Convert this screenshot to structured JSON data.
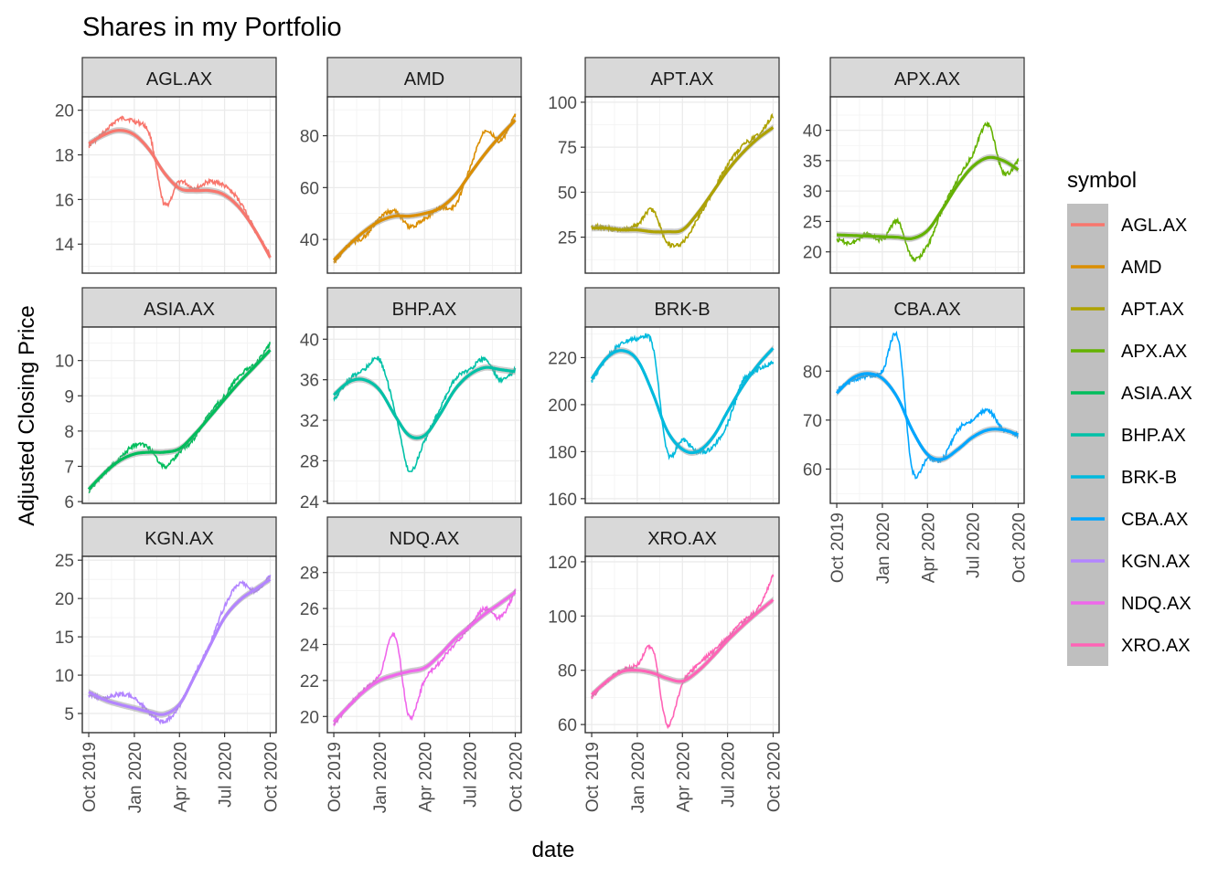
{
  "chart_data": {
    "type": "line",
    "title": "Shares in my Portfolio",
    "xlabel": "date",
    "ylabel": "Adjusted Closing Price",
    "x_ticks": [
      "Oct 2019",
      "Jan 2020",
      "Apr 2020",
      "Jul 2020",
      "Oct 2020"
    ],
    "x_tick_dates": [
      "2019-10-01",
      "2020-01-01",
      "2020-04-01",
      "2020-07-01",
      "2020-10-01"
    ],
    "x_range": [
      "2019-09-18",
      "2020-10-13"
    ],
    "grid": true,
    "smoother": "loess with grey confidence band",
    "legend": {
      "title": "symbol",
      "position": "right",
      "entries": [
        "AGL.AX",
        "AMD",
        "APT.AX",
        "APX.AX",
        "ASIA.AX",
        "BHP.AX",
        "BRK-B",
        "CBA.AX",
        "KGN.AX",
        "NDQ.AX",
        "XRO.AX"
      ]
    },
    "series": [
      {
        "name": "AGL.AX",
        "color": "#F8766D",
        "y_ticks": [
          14,
          16,
          18,
          20
        ],
        "ylim": [
          12.7,
          20.6
        ],
        "x": [
          "2019-10-01",
          "2019-11-01",
          "2019-12-01",
          "2020-01-01",
          "2020-02-01",
          "2020-03-01",
          "2020-04-01",
          "2020-05-01",
          "2020-06-01",
          "2020-07-01",
          "2020-08-01",
          "2020-09-01",
          "2020-10-01"
        ],
        "values": [
          18.4,
          19.0,
          19.6,
          19.5,
          18.9,
          15.8,
          16.8,
          16.5,
          16.8,
          16.6,
          15.9,
          14.6,
          13.5
        ],
        "smooth": [
          18.5,
          18.9,
          19.1,
          18.9,
          18.2,
          17.2,
          16.5,
          16.4,
          16.4,
          16.2,
          15.6,
          14.6,
          13.4
        ]
      },
      {
        "name": "AMD",
        "color": "#DB8E00",
        "y_ticks": [
          40,
          60,
          80
        ],
        "ylim": [
          27,
          95
        ],
        "x": [
          "2019-10-01",
          "2019-11-01",
          "2019-12-01",
          "2020-01-01",
          "2020-02-01",
          "2020-03-01",
          "2020-04-01",
          "2020-05-01",
          "2020-06-01",
          "2020-07-01",
          "2020-08-01",
          "2020-09-01",
          "2020-10-01"
        ],
        "values": [
          31,
          38,
          41,
          48,
          51,
          45,
          48,
          52,
          53,
          67,
          82,
          78,
          88
        ],
        "smooth": [
          32,
          38,
          43,
          47,
          49,
          49,
          50,
          52,
          57,
          65,
          73,
          80,
          86
        ]
      },
      {
        "name": "APT.AX",
        "color": "#AEA200",
        "y_ticks": [
          25,
          50,
          75,
          100
        ],
        "ylim": [
          5,
          103
        ],
        "x": [
          "2019-10-01",
          "2019-11-01",
          "2019-12-01",
          "2020-01-01",
          "2020-02-01",
          "2020-03-01",
          "2020-04-01",
          "2020-05-01",
          "2020-06-01",
          "2020-07-01",
          "2020-08-01",
          "2020-09-01",
          "2020-10-01"
        ],
        "values": [
          31,
          30,
          29,
          32,
          40,
          22,
          22,
          35,
          50,
          65,
          76,
          82,
          93
        ],
        "smooth": [
          30,
          30,
          29,
          29,
          28,
          28,
          29,
          38,
          50,
          62,
          72,
          80,
          86
        ]
      },
      {
        "name": "APX.AX",
        "color": "#64B200",
        "y_ticks": [
          20,
          25,
          30,
          35,
          40
        ],
        "ylim": [
          16.5,
          45.5
        ],
        "x": [
          "2019-10-01",
          "2019-11-01",
          "2019-12-01",
          "2020-01-01",
          "2020-02-01",
          "2020-03-01",
          "2020-04-01",
          "2020-05-01",
          "2020-06-01",
          "2020-07-01",
          "2020-08-01",
          "2020-09-01",
          "2020-10-01"
        ],
        "values": [
          22,
          21.5,
          23,
          22,
          25,
          19,
          21,
          27,
          32,
          36,
          41,
          33,
          35
        ],
        "smooth": [
          22.8,
          22.7,
          22.6,
          22.5,
          22.4,
          22.2,
          23.5,
          27,
          31,
          34,
          35.5,
          35,
          33.5
        ]
      },
      {
        "name": "ASIA.AX",
        "color": "#00BD5C",
        "y_ticks": [
          6,
          7,
          8,
          9,
          10
        ],
        "ylim": [
          5.95,
          10.95
        ],
        "x": [
          "2019-10-01",
          "2019-11-01",
          "2019-12-01",
          "2020-01-01",
          "2020-02-01",
          "2020-03-01",
          "2020-04-01",
          "2020-05-01",
          "2020-06-01",
          "2020-07-01",
          "2020-08-01",
          "2020-09-01",
          "2020-10-01"
        ],
        "values": [
          6.3,
          6.8,
          7.2,
          7.6,
          7.5,
          7.0,
          7.4,
          7.8,
          8.5,
          9.0,
          9.6,
          9.9,
          10.5
        ],
        "smooth": [
          6.35,
          6.8,
          7.15,
          7.35,
          7.4,
          7.4,
          7.5,
          7.9,
          8.4,
          8.9,
          9.4,
          9.85,
          10.3
        ]
      },
      {
        "name": "BHP.AX",
        "color": "#00C1A7",
        "y_ticks": [
          24,
          28,
          32,
          36,
          40
        ],
        "ylim": [
          23.8,
          41.2
        ],
        "x": [
          "2019-10-01",
          "2019-11-01",
          "2019-12-01",
          "2020-01-01",
          "2020-02-01",
          "2020-03-01",
          "2020-04-01",
          "2020-05-01",
          "2020-06-01",
          "2020-07-01",
          "2020-08-01",
          "2020-09-01",
          "2020-10-01"
        ],
        "values": [
          34,
          36,
          37,
          38,
          33,
          27,
          30,
          33,
          36,
          37,
          38,
          36,
          37
        ],
        "smooth": [
          34.5,
          35.8,
          36.0,
          35.0,
          32.5,
          30.5,
          30.5,
          32.5,
          35.0,
          36.5,
          37.2,
          37.0,
          36.8
        ]
      },
      {
        "name": "BRK-B",
        "color": "#00BADE",
        "y_ticks": [
          160,
          180,
          200,
          220
        ],
        "ylim": [
          158,
          233
        ],
        "x": [
          "2019-10-01",
          "2019-11-01",
          "2019-12-01",
          "2020-01-01",
          "2020-02-01",
          "2020-03-01",
          "2020-04-01",
          "2020-05-01",
          "2020-06-01",
          "2020-07-01",
          "2020-08-01",
          "2020-09-01",
          "2020-10-01"
        ],
        "values": [
          210,
          220,
          226,
          228,
          225,
          180,
          185,
          180,
          182,
          192,
          210,
          215,
          218
        ],
        "smooth": [
          211,
          220,
          223,
          219,
          205,
          189,
          181,
          180,
          186,
          197,
          208,
          217,
          224
        ]
      },
      {
        "name": "CBA.AX",
        "color": "#00A6FF",
        "y_ticks": [
          60,
          70,
          80
        ],
        "ylim": [
          53,
          89
        ],
        "x": [
          "2019-10-01",
          "2019-11-01",
          "2019-12-01",
          "2020-01-01",
          "2020-02-01",
          "2020-03-01",
          "2020-04-01",
          "2020-05-01",
          "2020-06-01",
          "2020-07-01",
          "2020-08-01",
          "2020-09-01",
          "2020-10-01"
        ],
        "values": [
          76,
          78,
          79,
          80,
          87,
          60,
          62,
          62,
          68,
          70,
          72,
          68,
          67
        ],
        "smooth": [
          75.5,
          78.5,
          79.5,
          78.5,
          74.5,
          68,
          63,
          62,
          64,
          66.5,
          68,
          68,
          67
        ]
      },
      {
        "name": "KGN.AX",
        "color": "#B385FF",
        "y_ticks": [
          5,
          10,
          15,
          20,
          25
        ],
        "ylim": [
          2.5,
          25.5
        ],
        "x": [
          "2019-10-01",
          "2019-11-01",
          "2019-12-01",
          "2020-01-01",
          "2020-02-01",
          "2020-03-01",
          "2020-04-01",
          "2020-05-01",
          "2020-06-01",
          "2020-07-01",
          "2020-08-01",
          "2020-09-01",
          "2020-10-01"
        ],
        "values": [
          7.5,
          7.0,
          7.5,
          7.0,
          5.0,
          4.0,
          6.0,
          10.0,
          14.0,
          19.0,
          22.0,
          21.0,
          23.0
        ],
        "smooth": [
          7.8,
          6.8,
          6.2,
          5.7,
          5.2,
          4.9,
          6.2,
          9.8,
          13.8,
          17.5,
          19.8,
          21.2,
          22.5
        ]
      },
      {
        "name": "NDQ.AX",
        "color": "#EF67EB",
        "y_ticks": [
          20,
          22,
          24,
          26,
          28
        ],
        "ylim": [
          19.1,
          28.9
        ],
        "x": [
          "2019-10-01",
          "2019-11-01",
          "2019-12-01",
          "2020-01-01",
          "2020-02-01",
          "2020-03-01",
          "2020-04-01",
          "2020-05-01",
          "2020-06-01",
          "2020-07-01",
          "2020-08-01",
          "2020-09-01",
          "2020-10-01"
        ],
        "values": [
          19.6,
          20.6,
          21.5,
          22.3,
          24.5,
          20.0,
          22.0,
          23.0,
          24.0,
          25.0,
          26.0,
          25.5,
          27.0
        ],
        "smooth": [
          19.7,
          20.6,
          21.4,
          22.0,
          22.3,
          22.5,
          22.7,
          23.4,
          24.3,
          25.0,
          25.7,
          26.3,
          26.9
        ]
      },
      {
        "name": "XRO.AX",
        "color": "#FF63B6",
        "y_ticks": [
          60,
          80,
          100,
          120
        ],
        "ylim": [
          57,
          122
        ],
        "x": [
          "2019-10-01",
          "2019-11-01",
          "2019-12-01",
          "2020-01-01",
          "2020-02-01",
          "2020-03-01",
          "2020-04-01",
          "2020-05-01",
          "2020-06-01",
          "2020-07-01",
          "2020-08-01",
          "2020-09-01",
          "2020-10-01"
        ],
        "values": [
          70,
          76,
          80,
          82,
          88,
          60,
          75,
          82,
          87,
          92,
          98,
          103,
          115
        ],
        "smooth": [
          71,
          76,
          79.5,
          80,
          79,
          77,
          76,
          79.5,
          85,
          91,
          96.5,
          101.5,
          106
        ]
      }
    ]
  }
}
